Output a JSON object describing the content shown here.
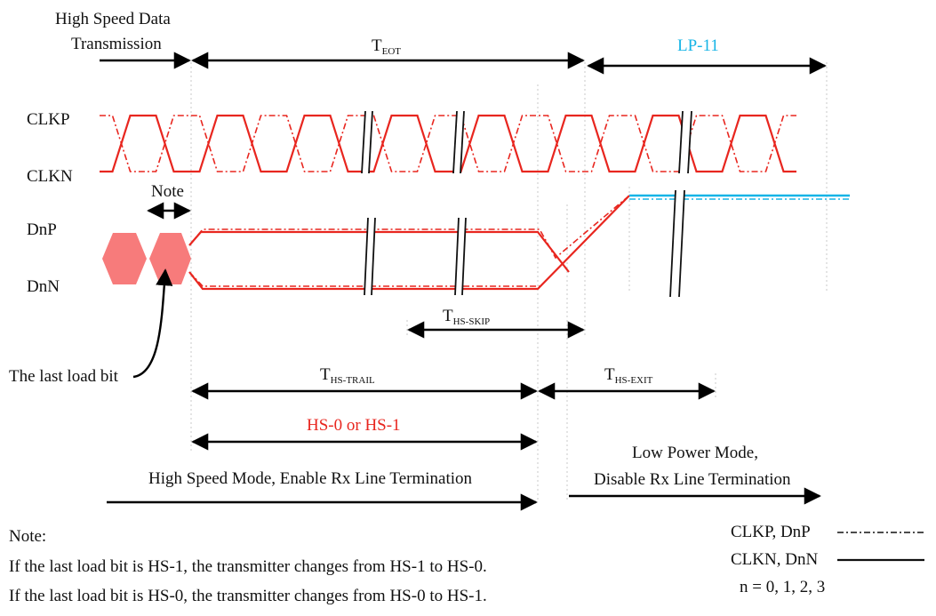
{
  "labels": {
    "hs_data": [
      "High Speed Data",
      "Transmission"
    ],
    "t_eot": {
      "main": "T",
      "sub": "EOT"
    },
    "lp11": "LP-11",
    "clkp": "CLKP",
    "clkn": "CLKN",
    "note": "Note",
    "dnp": "DnP",
    "dnn": "DnN",
    "t_hs_skip": {
      "main": "T",
      "sub": "HS-SKIP"
    },
    "last_load_bit": "The last load bit",
    "t_hs_trail": {
      "main": "T",
      "sub": "HS-TRAIL"
    },
    "t_hs_exit": {
      "main": "T",
      "sub": "HS-EXIT"
    },
    "hs0_or_hs1": "HS-0 or HS-1",
    "hs_mode": "High Speed Mode, Enable Rx Line Termination",
    "lp_mode": [
      "Low Power Mode,",
      "Disable Rx Line Termination"
    ]
  },
  "notes": {
    "title": "Note:",
    "lines": [
      "If the last load bit is HS-1, the transmitter changes from HS-1 to HS-0.",
      "If the last load bit is HS-0, the transmitter changes from HS-0 to HS-1."
    ]
  },
  "legend": {
    "dashed_label": "CLKP, DnP",
    "solid_label": "CLKN, DnN",
    "n_values": "n = 0, 1, 2, 3"
  },
  "colors": {
    "signal": "#e8261f",
    "lp11": "#16b4e6",
    "packet": "#f77b7b"
  }
}
